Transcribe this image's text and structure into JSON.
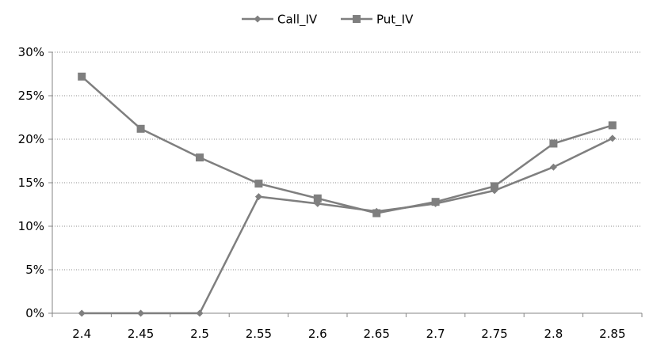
{
  "chart_data": {
    "type": "line",
    "title": "",
    "xlabel": "",
    "ylabel": "",
    "categories": [
      "2.4",
      "2.45",
      "2.5",
      "2.55",
      "2.6",
      "2.65",
      "2.7",
      "2.75",
      "2.8",
      "2.85"
    ],
    "series": [
      {
        "name": "Call_IV",
        "marker": "diamond",
        "color": "#7f7f7f",
        "values": [
          0.0,
          0.0,
          0.0,
          0.134,
          0.126,
          0.117,
          0.126,
          0.141,
          0.168,
          0.201
        ]
      },
      {
        "name": "Put_IV",
        "marker": "square",
        "color": "#7f7f7f",
        "values": [
          0.272,
          0.212,
          0.179,
          0.149,
          0.132,
          0.115,
          0.128,
          0.146,
          0.195,
          0.216
        ]
      }
    ],
    "ylim": [
      0,
      0.3
    ],
    "yticks": [
      {
        "value": 0.0,
        "label": "0%"
      },
      {
        "value": 0.05,
        "label": "5%"
      },
      {
        "value": 0.1,
        "label": "10%"
      },
      {
        "value": 0.15,
        "label": "15%"
      },
      {
        "value": 0.2,
        "label": "20%"
      },
      {
        "value": 0.25,
        "label": "25%"
      },
      {
        "value": 0.3,
        "label": "30%"
      }
    ],
    "grid": true,
    "legend_position": "top-center"
  }
}
